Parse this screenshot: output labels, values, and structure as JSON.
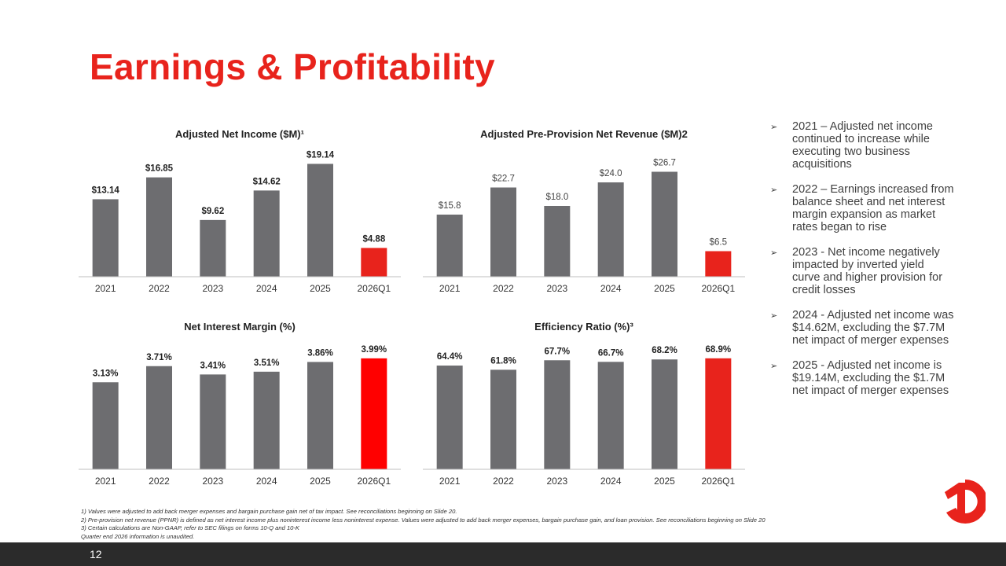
{
  "page": {
    "title": "Earnings & Profitability",
    "page_number": "12",
    "colors": {
      "accent": "#e8231c",
      "bar": "#6d6d70",
      "highlight": "#e8231c",
      "highlight_bright": "#ff0000",
      "footer": "#2b2b2b"
    }
  },
  "bullets": [
    "2021 – Adjusted net income continued to increase while executing two business acquisitions",
    "2022 – Earnings increased from balance sheet and net interest margin expansion as market rates began to rise",
    "2023 - Net income negatively impacted by inverted yield curve and higher provision for credit losses",
    "2024 - Adjusted net income was $14.62M, excluding the $7.7M net impact of merger expenses",
    "2025 - Adjusted net income is $19.14M, excluding the $1.7M net impact of merger expenses"
  ],
  "footnotes": [
    "1) Values were adjusted to add back merger expenses and bargain purchase gain net of tax impact. See reconciliations beginning on Slide 20.",
    "2) Pre-provision net revenue (PPNR) is defined as net interest income plus noninterest income less noninterest expense. Values were adjusted to add back merger expenses, bargain purchase gain, and loan provision. See reconciliations beginning on Slide 20",
    "3) Certain calculations are Non-GAAP, refer to SEC filings on forms 10-Q and 10-K",
    "Quarter end 2026 information is unaudited."
  ],
  "chart_data": [
    {
      "type": "bar",
      "title": "Adjusted Net Income ($M)¹",
      "categories": [
        "2021",
        "2022",
        "2023",
        "2024",
        "2025",
        "2026Q1"
      ],
      "values": [
        13.14,
        16.85,
        9.62,
        14.62,
        19.14,
        4.88
      ],
      "labels": [
        "$13.14",
        "$16.85",
        "$9.62",
        "$14.62",
        "$19.14",
        "$4.88"
      ],
      "ylim": [
        0,
        20
      ],
      "highlight_index": 5,
      "label_bold": true
    },
    {
      "type": "bar",
      "title": "Adjusted Pre-Provision Net Revenue ($M)2",
      "categories": [
        "2021",
        "2022",
        "2023",
        "2024",
        "2025",
        "2026Q1"
      ],
      "values": [
        15.8,
        22.7,
        18.0,
        24.0,
        26.7,
        6.5
      ],
      "labels": [
        "$15.8",
        "$22.7",
        "$18.0",
        "$24.0",
        "$26.7",
        "$6.5"
      ],
      "ylim": [
        0,
        30
      ],
      "highlight_index": 5,
      "label_bold": false
    },
    {
      "type": "bar",
      "title": "Net Interest Margin (%)",
      "categories": [
        "2021",
        "2022",
        "2023",
        "2024",
        "2025",
        "2026Q1"
      ],
      "values": [
        3.13,
        3.71,
        3.41,
        3.51,
        3.86,
        3.99
      ],
      "labels": [
        "3.13%",
        "3.71%",
        "3.41%",
        "3.51%",
        "3.86%",
        "3.99%"
      ],
      "ylim": [
        0,
        4.24
      ],
      "highlight_index": 5,
      "label_bold": true
    },
    {
      "type": "bar",
      "title": "Efficiency Ratio (%)³",
      "categories": [
        "2021",
        "2022",
        "2023",
        "2024",
        "2025",
        "2026Q1"
      ],
      "values": [
        64.4,
        61.8,
        67.7,
        66.7,
        68.2,
        68.9
      ],
      "labels": [
        "64.4%",
        "61.8%",
        "67.7%",
        "66.7%",
        "68.2%",
        "68.9%"
      ],
      "ylim": [
        0,
        73.2
      ],
      "highlight_index": 5,
      "label_bold": true
    }
  ]
}
